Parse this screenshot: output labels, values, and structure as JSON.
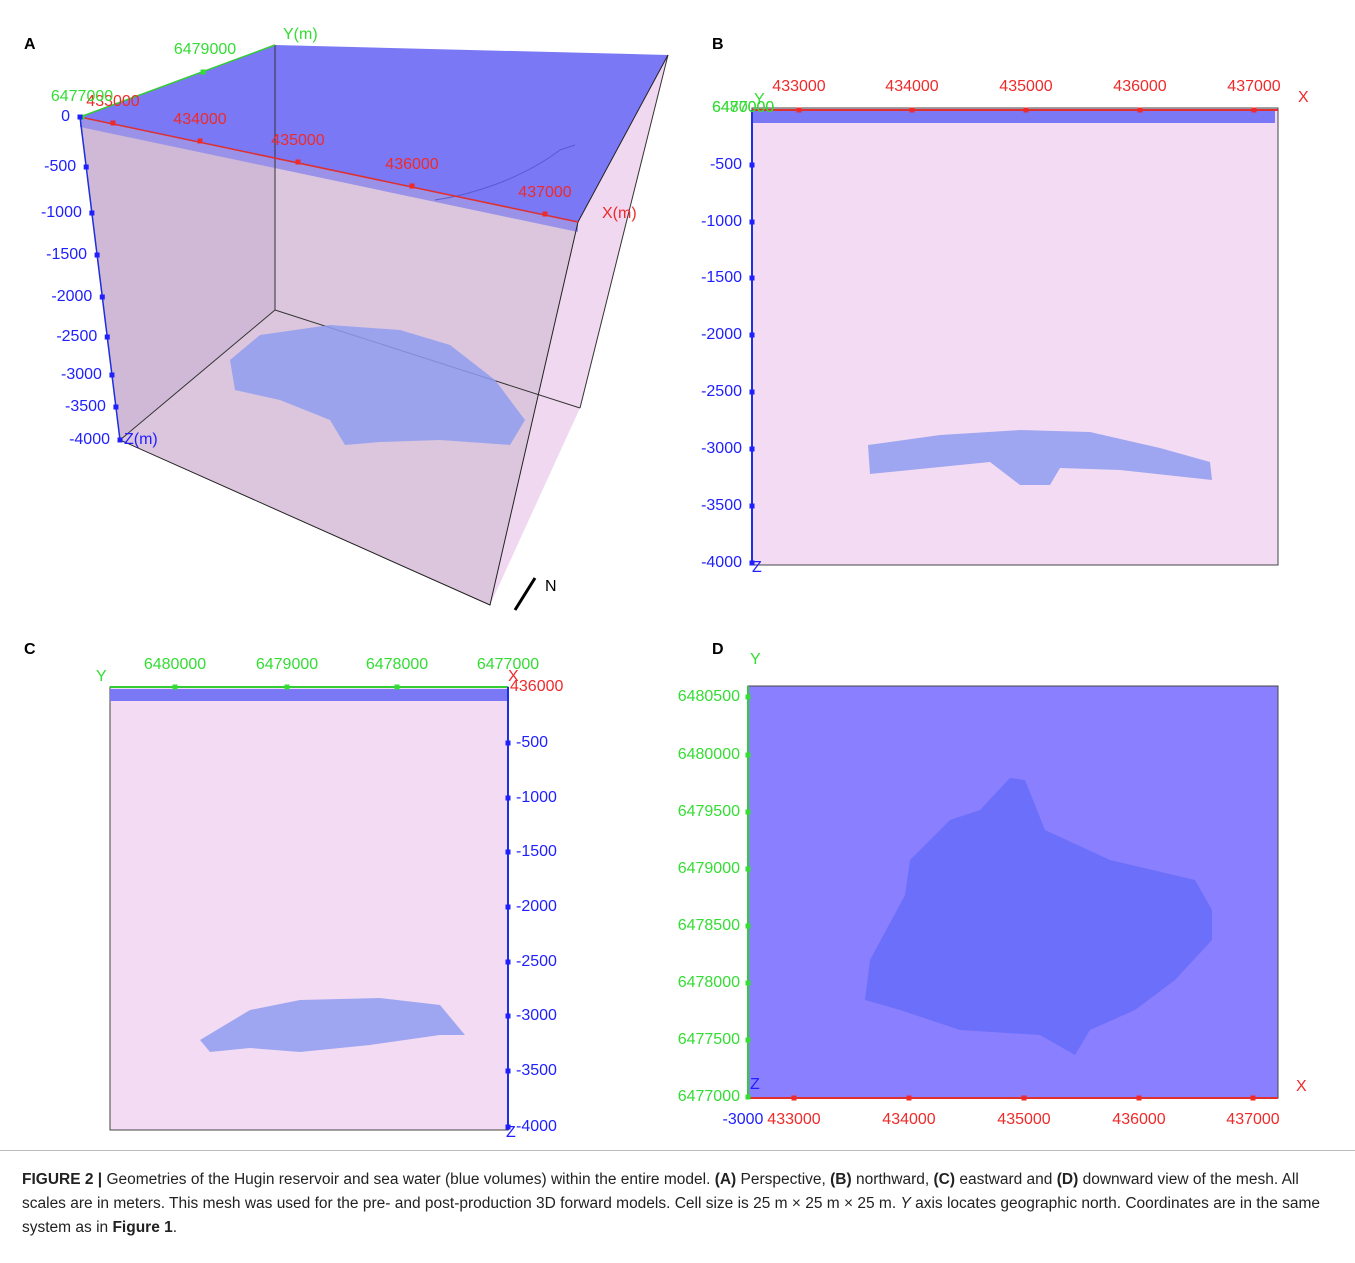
{
  "panels": [
    {
      "label": "A",
      "axis_titles": [
        "Y(m)",
        "X(m)",
        "Z(m)"
      ],
      "north": "N",
      "x_ticks": [
        "433000",
        "434000",
        "435000",
        "436000",
        "437000"
      ],
      "y_ticks": [
        "6477000",
        "6479000"
      ],
      "z_ticks": [
        "0",
        "-500",
        "-1000",
        "-1500",
        "-2000",
        "-2500",
        "-3000",
        "-3500",
        "-4000"
      ]
    },
    {
      "label": "B",
      "axis_titles": [
        "Y",
        "X",
        "Z"
      ],
      "x_ticks": [
        "433000",
        "434000",
        "435000",
        "436000",
        "437000"
      ],
      "y_ticks": [
        "6477000",
        "6480000"
      ],
      "z_ticks": [
        "-500",
        "-1000",
        "-1500",
        "-2000",
        "-2500",
        "-3000",
        "-3500",
        "-4000"
      ]
    },
    {
      "label": "C",
      "axis_titles": [
        "Y",
        "X",
        "Z"
      ],
      "x_ticks": [
        "436000"
      ],
      "y_ticks": [
        "6480000",
        "6479000",
        "6478000",
        "6477000"
      ],
      "z_ticks": [
        "-500",
        "-1000",
        "-1500",
        "-2000",
        "-2500",
        "-3000",
        "-3500",
        "-4000"
      ]
    },
    {
      "label": "D",
      "axis_titles": [
        "Y",
        "X",
        "Z"
      ],
      "x_ticks": [
        "433000",
        "434000",
        "435000",
        "436000",
        "437000"
      ],
      "y_ticks": [
        "6480500",
        "6480000",
        "6479500",
        "6479000",
        "6478500",
        "6478000",
        "6477500",
        "6477000"
      ],
      "z_ticks": [
        "-3000"
      ]
    }
  ],
  "caption": [
    {
      "text": "FIGURE 2 |",
      "style": "bold"
    },
    {
      "text": " Geometries of the Hugin reservoir and sea water (blue volumes) within the entire model. "
    },
    {
      "text": "(A)",
      "style": "bold"
    },
    {
      "text": " Perspective, "
    },
    {
      "text": "(B)",
      "style": "bold"
    },
    {
      "text": " northward, "
    },
    {
      "text": "(C)",
      "style": "bold"
    },
    {
      "text": " eastward and "
    },
    {
      "text": "(D)",
      "style": "bold"
    },
    {
      "text": " downward view of the mesh. All scales are in meters. This mesh was used for the pre- and post-production 3D forward models. Cell size is 25 m × 25 m × 25 m. "
    },
    {
      "text": "Y",
      "style": "italic"
    },
    {
      "text": " axis locates geographic north. Coordinates are in the same system as in "
    },
    {
      "text": "Figure 1",
      "style": "bold"
    },
    {
      "text": "."
    }
  ]
}
